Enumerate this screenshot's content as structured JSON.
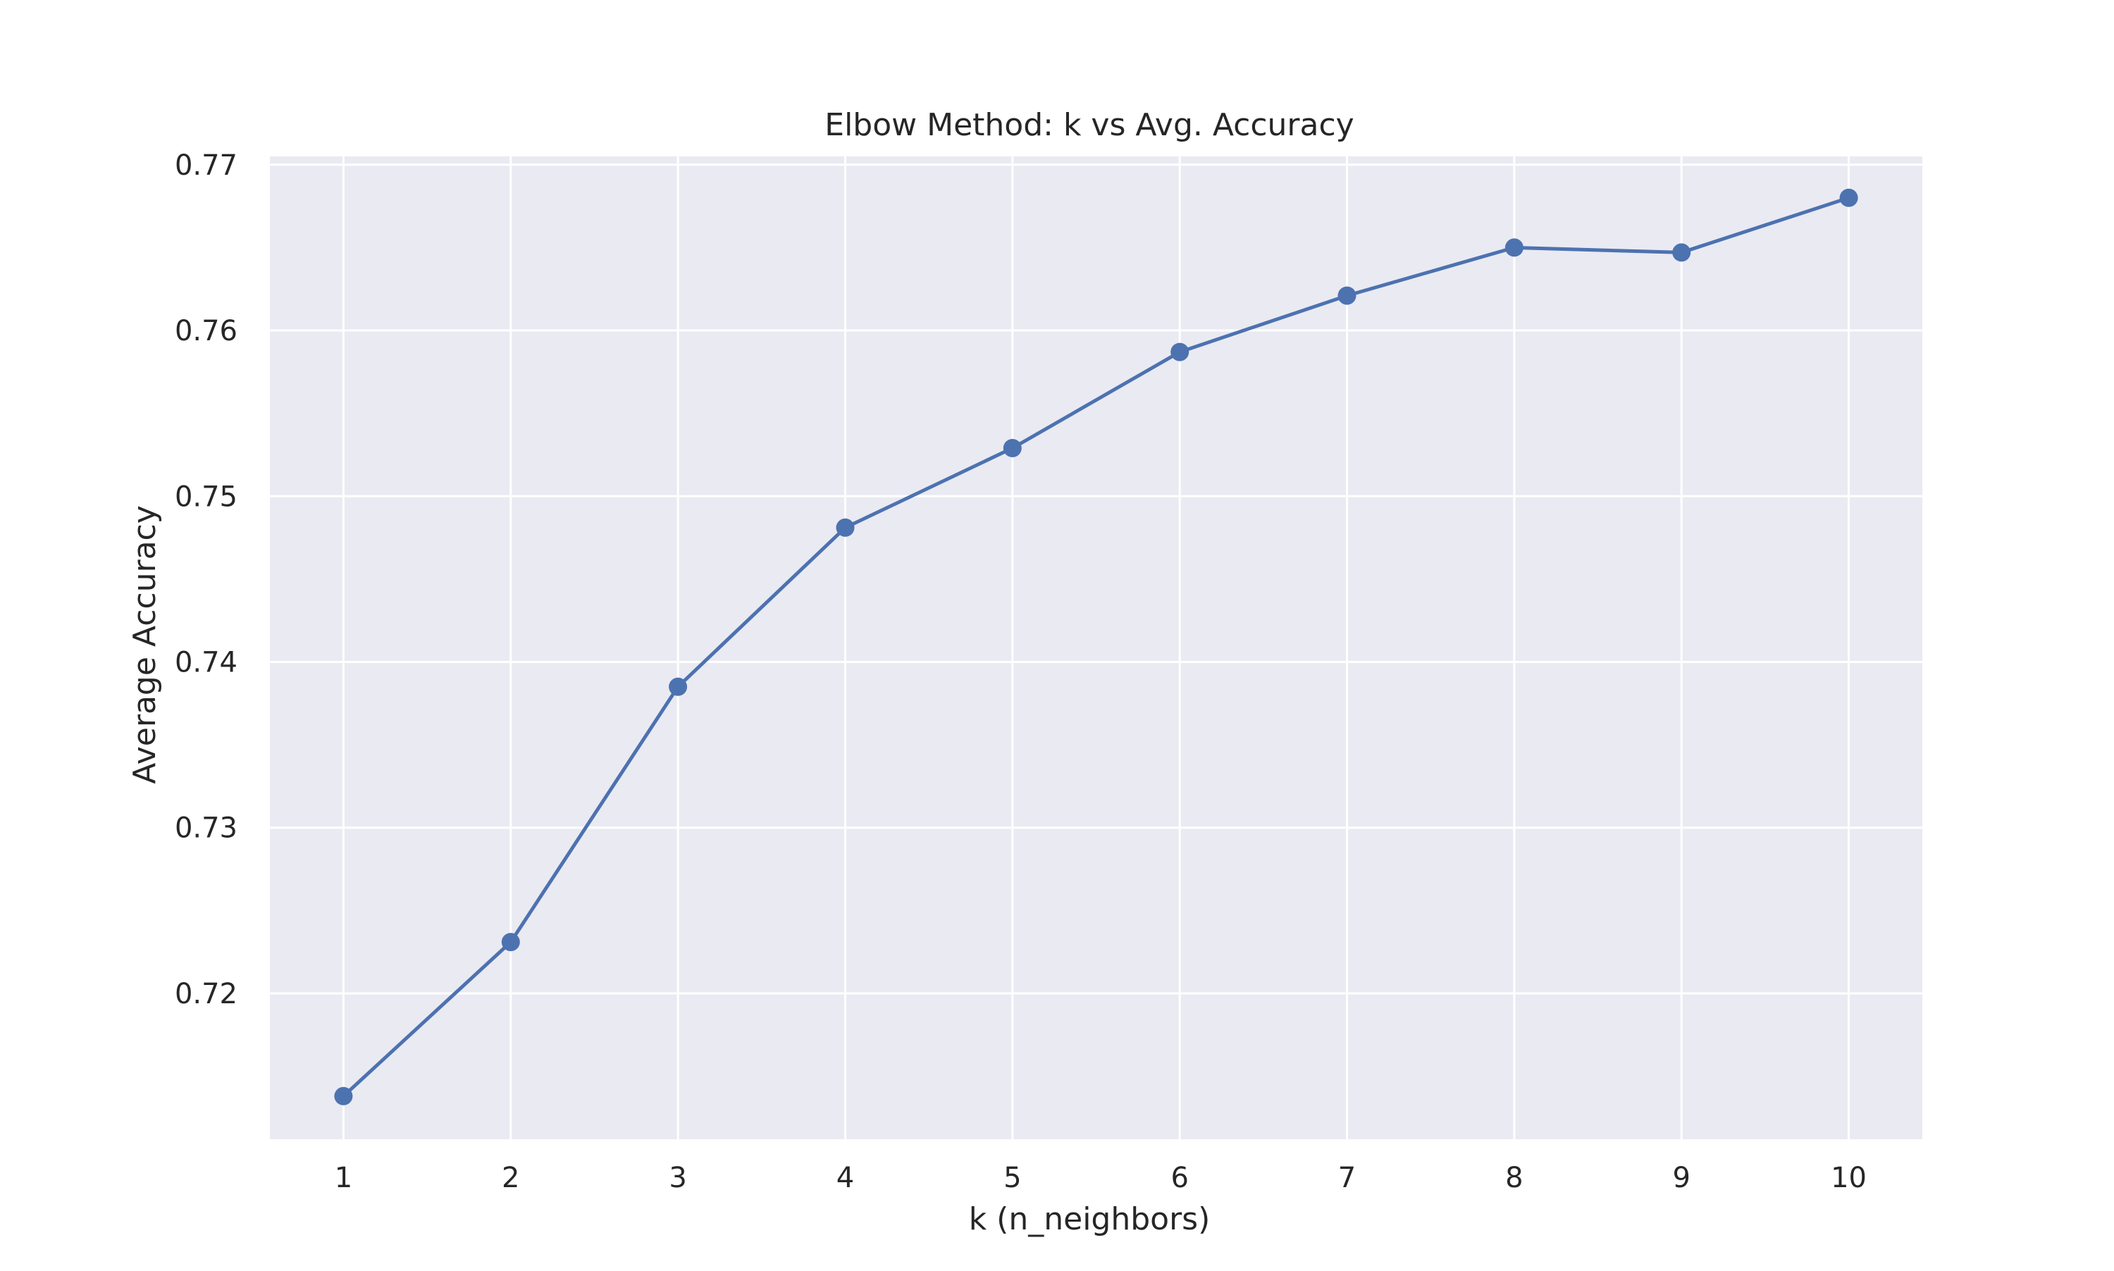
{
  "chart_data": {
    "type": "line",
    "title": "Elbow Method: k vs Avg. Accuracy",
    "xlabel": "k (n_neighbors)",
    "ylabel": "Average Accuracy",
    "x": [
      1,
      2,
      3,
      4,
      5,
      6,
      7,
      8,
      9,
      10
    ],
    "series": [
      {
        "values": [
          0.7138,
          0.7231,
          0.7385,
          0.7481,
          0.7529,
          0.7587,
          0.7621,
          0.765,
          0.7647,
          0.768
        ]
      }
    ],
    "xticks": [
      "1",
      "2",
      "3",
      "4",
      "5",
      "6",
      "7",
      "8",
      "9",
      "10"
    ],
    "yticks": [
      "0.72",
      "0.73",
      "0.74",
      "0.75",
      "0.76",
      "0.77"
    ],
    "xlim": [
      0.56,
      10.44
    ],
    "ylim": [
      0.7112,
      0.7705
    ],
    "grid": true,
    "marker": "circle",
    "colors": {
      "line": "#4c72b0",
      "plot_background": "#eaeaf2",
      "grid": "#ffffff",
      "text": "#262626"
    }
  }
}
